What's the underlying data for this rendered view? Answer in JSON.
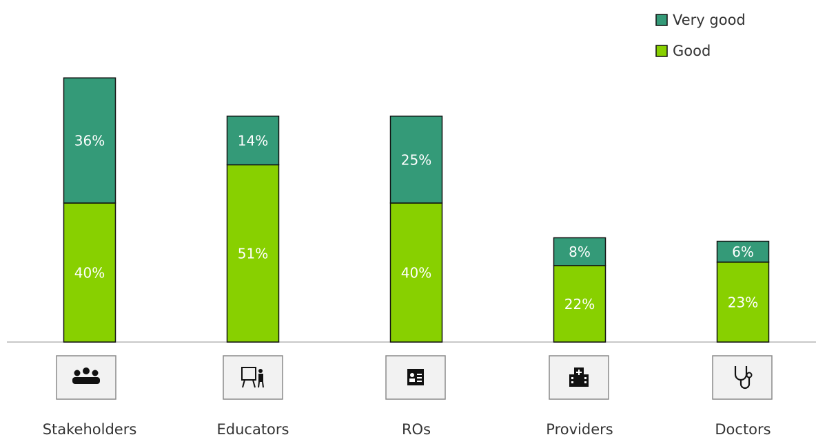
{
  "chart_data": {
    "type": "stacked-bar",
    "categories": [
      "Stakeholders",
      "Educators",
      "ROs",
      "Providers",
      "Doctors"
    ],
    "series": [
      {
        "name": "Good",
        "color": "#88d000",
        "values": [
          40,
          51,
          40,
          22,
          23
        ],
        "value_labels": [
          "40%",
          "51%",
          "40%",
          "22%",
          "23%"
        ]
      },
      {
        "name": "Very good",
        "color": "#349a78",
        "values": [
          36,
          14,
          25,
          8,
          6
        ],
        "value_labels": [
          "36%",
          "14%",
          "25%",
          "8%",
          "6%"
        ]
      }
    ],
    "legend": "top-right"
  }
}
